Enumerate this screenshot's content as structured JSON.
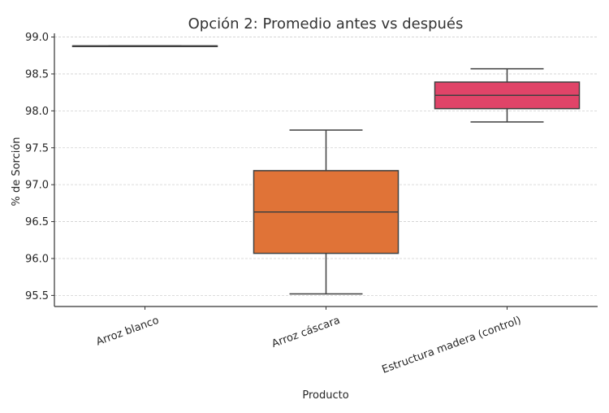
{
  "chart_data": {
    "type": "box",
    "title": "Opción 2: Promedio antes vs después",
    "xlabel": "Producto",
    "ylabel": "% de Sorción",
    "ylim": [
      95.35,
      99.05
    ],
    "yticks": [
      95.5,
      96.0,
      96.5,
      97.0,
      97.5,
      98.0,
      98.5,
      99.0
    ],
    "ytick_labels": [
      "95.5",
      "96.0",
      "96.5",
      "97.0",
      "97.5",
      "98.0",
      "98.5",
      "99.0"
    ],
    "grid": "horizontal-dashed",
    "categories": [
      "Arroz blanco",
      "Arroz cáscara",
      "Estructura madera (control)"
    ],
    "boxes": [
      {
        "category": "Arroz blanco",
        "min": 98.88,
        "q1": 98.88,
        "median": 98.88,
        "q3": 98.88,
        "max": 98.88,
        "color": "#3b75af"
      },
      {
        "category": "Arroz cáscara",
        "min": 95.52,
        "q1": 96.07,
        "median": 96.63,
        "q3": 97.19,
        "max": 97.74,
        "color": "#e07337"
      },
      {
        "category": "Estructura madera (control)",
        "min": 97.85,
        "q1": 98.03,
        "median": 98.21,
        "q3": 98.39,
        "max": 98.57,
        "color": "#e04468"
      }
    ]
  }
}
